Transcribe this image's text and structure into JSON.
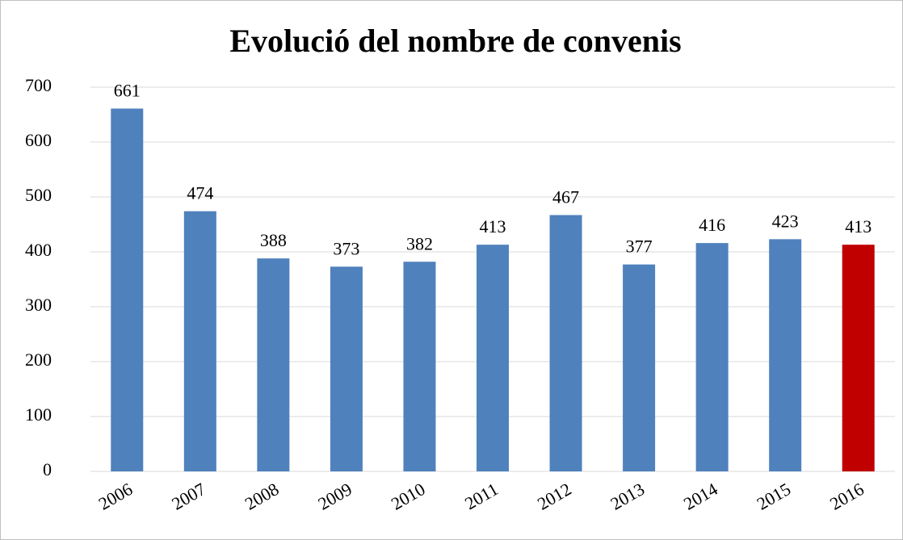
{
  "chart_data": {
    "type": "bar",
    "title": "Evolució del nombre de convenis",
    "categories": [
      "2006",
      "2007",
      "2008",
      "2009",
      "2010",
      "2011",
      "2012",
      "2013",
      "2014",
      "2015",
      "2016"
    ],
    "values": [
      661,
      474,
      388,
      373,
      382,
      413,
      467,
      377,
      416,
      423,
      413
    ],
    "colors": [
      "#4f81bd",
      "#4f81bd",
      "#4f81bd",
      "#4f81bd",
      "#4f81bd",
      "#4f81bd",
      "#4f81bd",
      "#4f81bd",
      "#4f81bd",
      "#4f81bd",
      "#c00000"
    ],
    "ylim": [
      0,
      700
    ],
    "yticks": [
      0,
      100,
      200,
      300,
      400,
      500,
      600,
      700
    ],
    "grid": true
  }
}
